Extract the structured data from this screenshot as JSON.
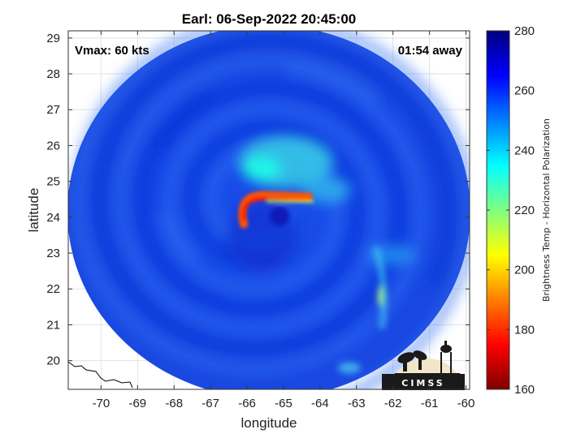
{
  "chart_data": {
    "type": "heatmap",
    "title": "Earl: 06-Sep-2022 20:45:00",
    "xlabel": "longitude",
    "ylabel": "latitude",
    "xlim": [
      -70.9,
      -59.9
    ],
    "ylim": [
      19.2,
      29.2
    ],
    "xticks": [
      -70,
      -69,
      -68,
      -67,
      -66,
      -65,
      -64,
      -63,
      -62,
      -61,
      -60
    ],
    "yticks": [
      20,
      21,
      22,
      23,
      24,
      25,
      26,
      27,
      28,
      29
    ],
    "grid": true,
    "annotations": {
      "left": "Vmax: 60 kts",
      "right": "01:54 away"
    },
    "colorbar": {
      "label": "Brightness Temp - Horizontal Polarization",
      "min": 160,
      "max": 280,
      "ticks": [
        160,
        180,
        200,
        220,
        240,
        260,
        280
      ],
      "colormap": "jet"
    },
    "swath_center": [
      -65.4,
      24.15
    ],
    "storm_center": [
      -65.6,
      24.3
    ],
    "features": [
      {
        "lon": -65.5,
        "lat": 24.85,
        "value": 185,
        "note": "warm arc north of center"
      },
      {
        "lon": -66.2,
        "lat": 24.55,
        "value": 178,
        "note": "warm arc west side"
      },
      {
        "lon": -65.6,
        "lat": 25.35,
        "value": 232,
        "note": "inner band"
      },
      {
        "lon": -62.3,
        "lat": 21.8,
        "value": 212,
        "note": "outer band cell"
      }
    ],
    "logo": "CIMSS"
  }
}
